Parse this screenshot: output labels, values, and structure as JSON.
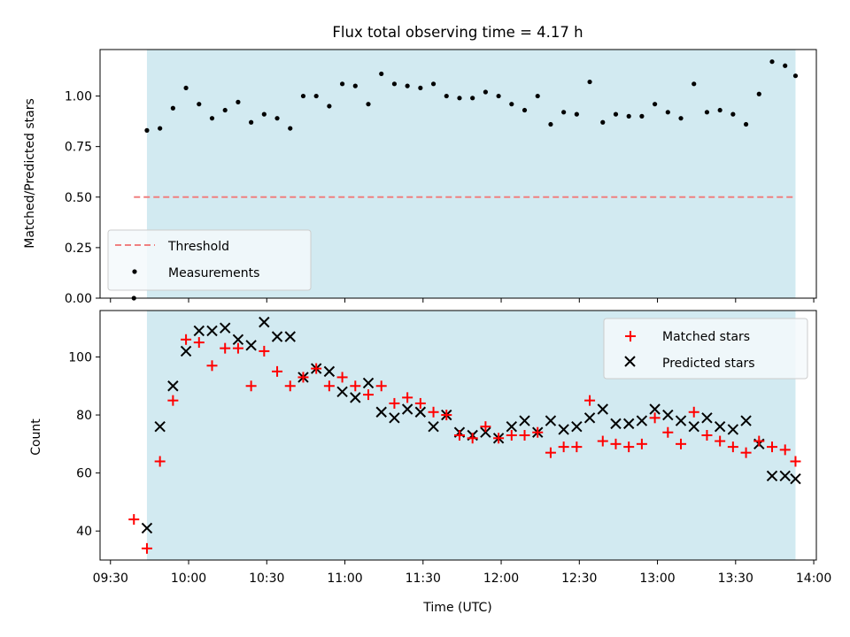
{
  "figure": {
    "title": "Flux total observing time = 4.17 h"
  },
  "colors": {
    "observing_window": "#add8e6",
    "threshold": "#f08080",
    "measurements": "#000000",
    "matched": "#ff0000",
    "predicted": "#000000",
    "legend_bg": "#f5f9fc"
  },
  "chart_data": [
    {
      "type": "scatter",
      "title": "Flux total observing time = 4.17 h",
      "xlabel": "",
      "ylabel": "Matched/Predicted stars",
      "xlim": [
        "09:26",
        "14:01"
      ],
      "ylim": [
        0.0,
        1.23
      ],
      "yticks": [
        0.0,
        0.25,
        0.5,
        0.75,
        1.0
      ],
      "ytick_labels": [
        "0.00",
        "0.25",
        "0.50",
        "0.75",
        "1.00"
      ],
      "x_tick_labels_shown": false,
      "observing_window": [
        "09:44",
        "13:53"
      ],
      "threshold": {
        "name": "Threshold",
        "value": 0.5,
        "x_range": [
          "09:39",
          "13:53"
        ],
        "style": "dashed"
      },
      "legend": {
        "position": "lower-left",
        "entries": [
          "Threshold",
          "Measurements"
        ]
      },
      "series": [
        {
          "name": "Measurements",
          "marker": "dot",
          "x": [
            "09:39",
            "09:44",
            "09:49",
            "09:54",
            "09:59",
            "10:04",
            "10:09",
            "10:14",
            "10:19",
            "10:24",
            "10:29",
            "10:34",
            "10:39",
            "10:44",
            "10:49",
            "10:54",
            "10:59",
            "11:04",
            "11:09",
            "11:14",
            "11:19",
            "11:24",
            "11:29",
            "11:34",
            "11:39",
            "11:44",
            "11:49",
            "11:54",
            "11:59",
            "12:04",
            "12:09",
            "12:14",
            "12:19",
            "12:24",
            "12:29",
            "12:34",
            "12:39",
            "12:44",
            "12:49",
            "12:54",
            "12:59",
            "13:04",
            "13:09",
            "13:14",
            "13:19",
            "13:24",
            "13:29",
            "13:34",
            "13:39",
            "13:44",
            "13:49",
            "13:53"
          ],
          "y": [
            0.0,
            0.83,
            0.84,
            0.94,
            1.04,
            0.96,
            0.89,
            0.93,
            0.97,
            0.87,
            0.91,
            0.89,
            0.84,
            1.0,
            1.0,
            0.95,
            1.06,
            1.05,
            0.96,
            1.11,
            1.06,
            1.05,
            1.04,
            1.06,
            1.0,
            0.99,
            0.99,
            1.02,
            1.0,
            0.96,
            0.93,
            1.0,
            0.86,
            0.92,
            0.91,
            1.07,
            0.87,
            0.91,
            0.9,
            0.9,
            0.96,
            0.92,
            0.89,
            1.06,
            0.92,
            0.93,
            0.91,
            0.86,
            1.01,
            1.17,
            1.15,
            1.1
          ]
        }
      ]
    },
    {
      "type": "scatter",
      "title": "",
      "xlabel": "Time (UTC)",
      "ylabel": "Count",
      "xlim": [
        "09:26",
        "14:01"
      ],
      "ylim": [
        30,
        116
      ],
      "yticks": [
        40,
        60,
        80,
        100
      ],
      "ytick_labels": [
        "40",
        "60",
        "80",
        "100"
      ],
      "xticks": [
        "09:30",
        "10:00",
        "10:30",
        "11:00",
        "11:30",
        "12:00",
        "12:30",
        "13:00",
        "13:30",
        "14:00"
      ],
      "xtick_labels": [
        "09:30",
        "10:00",
        "10:30",
        "11:00",
        "11:30",
        "12:00",
        "12:30",
        "13:00",
        "13:30",
        "14:00"
      ],
      "observing_window": [
        "09:44",
        "13:53"
      ],
      "legend": {
        "position": "upper-right",
        "entries": [
          "Matched stars",
          "Predicted stars"
        ]
      },
      "series": [
        {
          "name": "Matched stars",
          "marker": "plus",
          "x": [
            "09:39",
            "09:44",
            "09:49",
            "09:54",
            "09:59",
            "10:04",
            "10:09",
            "10:14",
            "10:19",
            "10:24",
            "10:29",
            "10:34",
            "10:39",
            "10:44",
            "10:49",
            "10:54",
            "10:59",
            "11:04",
            "11:09",
            "11:14",
            "11:19",
            "11:24",
            "11:29",
            "11:34",
            "11:39",
            "11:44",
            "11:49",
            "11:54",
            "11:59",
            "12:04",
            "12:09",
            "12:14",
            "12:19",
            "12:24",
            "12:29",
            "12:34",
            "12:39",
            "12:44",
            "12:49",
            "12:54",
            "12:59",
            "13:04",
            "13:09",
            "13:14",
            "13:19",
            "13:24",
            "13:29",
            "13:34",
            "13:39",
            "13:44",
            "13:49",
            "13:53"
          ],
          "y": [
            44,
            34,
            64,
            85,
            106,
            105,
            97,
            103,
            103,
            90,
            102,
            95,
            90,
            93,
            96,
            90,
            93,
            90,
            87,
            90,
            84,
            86,
            84,
            81,
            80,
            73,
            72,
            76,
            72,
            73,
            73,
            74,
            67,
            69,
            69,
            85,
            71,
            70,
            69,
            70,
            79,
            74,
            70,
            81,
            73,
            71,
            69,
            67,
            71,
            69,
            68,
            64
          ]
        },
        {
          "name": "Predicted stars",
          "marker": "x",
          "x": [
            "09:44",
            "09:49",
            "09:54",
            "09:59",
            "10:04",
            "10:09",
            "10:14",
            "10:19",
            "10:24",
            "10:29",
            "10:34",
            "10:39",
            "10:44",
            "10:49",
            "10:54",
            "10:59",
            "11:04",
            "11:09",
            "11:14",
            "11:19",
            "11:24",
            "11:29",
            "11:34",
            "11:39",
            "11:44",
            "11:49",
            "11:54",
            "11:59",
            "12:04",
            "12:09",
            "12:14",
            "12:19",
            "12:24",
            "12:29",
            "12:34",
            "12:39",
            "12:44",
            "12:49",
            "12:54",
            "12:59",
            "13:04",
            "13:09",
            "13:14",
            "13:19",
            "13:24",
            "13:29",
            "13:34",
            "13:39",
            "13:44",
            "13:49",
            "13:53"
          ],
          "y": [
            41,
            76,
            90,
            102,
            109,
            109,
            110,
            106,
            104,
            112,
            107,
            107,
            93,
            96,
            95,
            88,
            86,
            91,
            81,
            79,
            82,
            81,
            76,
            80,
            74,
            73,
            74,
            72,
            76,
            78,
            74,
            78,
            75,
            76,
            79,
            82,
            77,
            77,
            78,
            82,
            80,
            78,
            76,
            79,
            76,
            75,
            78,
            70,
            59,
            59,
            58
          ]
        }
      ]
    }
  ]
}
